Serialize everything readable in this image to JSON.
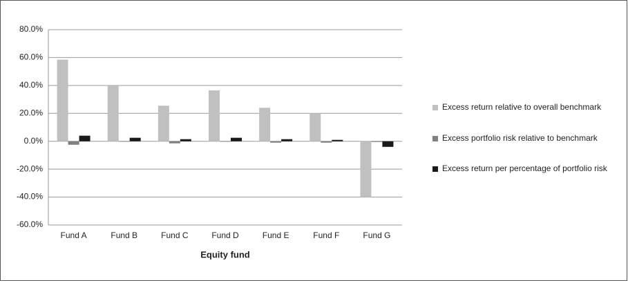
{
  "chart_data": {
    "type": "bar",
    "x_label": "Equity fund",
    "categories": [
      "Fund A",
      "Fund B",
      "Fund C",
      "Fund D",
      "Fund E",
      "Fund F",
      "Fund G"
    ],
    "series": [
      {
        "name": "Excess return relative to overall benchmark",
        "color": "#c0c0c0",
        "values": [
          58.5,
          40,
          25.5,
          36.5,
          24,
          20,
          -40
        ]
      },
      {
        "name": "Excess portfolio risk relative to benchmark",
        "color": "#808080",
        "values": [
          -2.5,
          -0.3,
          -1.5,
          -0.3,
          -1,
          -1,
          -0.5
        ]
      },
      {
        "name": "Excess return per percentage of portfolio risk",
        "color": "#1a1a1a",
        "values": [
          4,
          2.5,
          1.5,
          2.5,
          1.5,
          1,
          -4
        ]
      }
    ],
    "ylim": [
      -60,
      80
    ],
    "yticks": [
      {
        "value": -60,
        "label": "-60.0%"
      },
      {
        "value": -40,
        "label": "-40.0%"
      },
      {
        "value": -20,
        "label": "-20.0%"
      },
      {
        "value": 0,
        "label": "0.0%"
      },
      {
        "value": 20,
        "label": "20.0%"
      },
      {
        "value": 40,
        "label": "40.0%"
      },
      {
        "value": 60,
        "label": "60.0%"
      },
      {
        "value": 80,
        "label": "80.0%"
      }
    ],
    "grid": true,
    "legend": "right"
  }
}
